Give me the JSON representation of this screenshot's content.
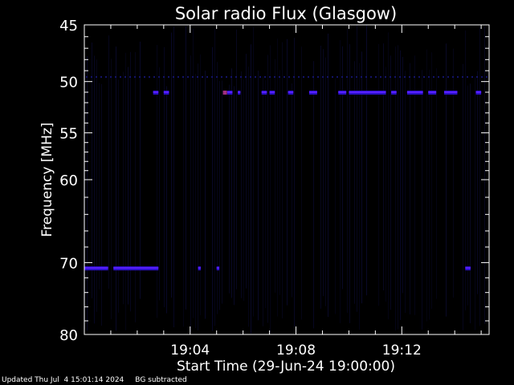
{
  "chart_data": {
    "type": "heatmap",
    "title": "Solar radio Flux (Glasgow)",
    "xlabel": "Start Time (29-Jun-24 19:00:00)",
    "ylabel": "Frequency [MHz]",
    "x_range_minutes": [
      0,
      15.3
    ],
    "x_ticks": [
      {
        "minute": 4,
        "label": "19:04"
      },
      {
        "minute": 8,
        "label": "19:08"
      },
      {
        "minute": 12,
        "label": "19:12"
      }
    ],
    "y_scale": "log",
    "y_range_mhz": [
      45,
      80
    ],
    "y_ticks": [
      {
        "mhz": 45,
        "label": "45"
      },
      {
        "mhz": 50,
        "label": "50"
      },
      {
        "mhz": 55,
        "label": "55"
      },
      {
        "mhz": 60,
        "label": "60"
      },
      {
        "mhz": 70,
        "label": "70"
      },
      {
        "mhz": 80,
        "label": "80"
      }
    ],
    "background_colour": "#000000",
    "colors": {
      "faint": "#0a0a2e",
      "medium": "#2a10c8",
      "strong": "#5a20ff",
      "hot": "#a03080"
    },
    "bright_lines": [
      {
        "mhz": 51.0,
        "segments": [
          [
            2.6,
            2.8
          ],
          [
            3.0,
            3.2
          ],
          [
            5.4,
            5.6
          ],
          [
            5.8,
            5.9
          ],
          [
            6.7,
            6.9
          ],
          [
            7.0,
            7.2
          ],
          [
            7.7,
            7.9
          ],
          [
            8.5,
            8.8
          ],
          [
            9.6,
            9.9
          ],
          [
            10.0,
            11.4
          ],
          [
            11.6,
            11.8
          ],
          [
            12.2,
            12.8
          ],
          [
            13.0,
            13.3
          ],
          [
            13.6,
            14.1
          ],
          [
            14.8,
            15.0
          ]
        ]
      },
      {
        "mhz": 70.7,
        "segments": [
          [
            0.0,
            0.9
          ],
          [
            1.1,
            2.8
          ],
          [
            4.3,
            4.4
          ],
          [
            5.0,
            5.1
          ],
          [
            14.4,
            14.6
          ]
        ]
      }
    ],
    "hot_spots": [
      {
        "minute": 5.3,
        "mhz": 51.0
      }
    ]
  },
  "footer": {
    "updated": "Updated Thu Jul  4 15:01:14 2024",
    "note": "BG subtracted"
  }
}
